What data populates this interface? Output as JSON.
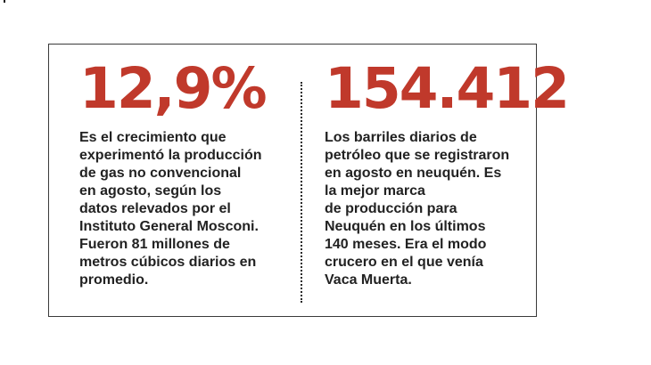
{
  "colors": {
    "accent": "#c0392b",
    "text": "#222222",
    "border": "#3a3a3a"
  },
  "left": {
    "figure": "12,9%",
    "lines": [
      "Es el crecimiento que",
      "experimentó la producción",
      "de gas no convencional",
      "en agosto, según los",
      "datos relevados por el",
      "Instituto General Mosconi.",
      "Fueron 81 millones de",
      "metros cúbicos diarios en",
      "promedio."
    ]
  },
  "right": {
    "figure": "154.412",
    "lines": [
      "Los barriles diarios de",
      "petróleo que se registraron",
      "en agosto en neuquén. Es",
      "la mejor marca",
      "de producción para",
      "Neuquén en los últimos",
      "140 meses. Era el modo",
      "crucero en el que venía",
      "Vaca Muerta."
    ]
  }
}
